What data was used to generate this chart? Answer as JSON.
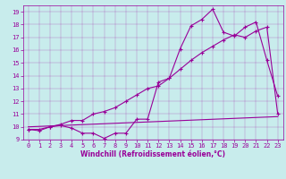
{
  "xlabel": "Windchill (Refroidissement éolien,°C)",
  "background_color": "#c8ecec",
  "line_color": "#990099",
  "xlim": [
    -0.5,
    23.5
  ],
  "ylim": [
    9,
    19.5
  ],
  "xticks": [
    0,
    1,
    2,
    3,
    4,
    5,
    6,
    7,
    8,
    9,
    10,
    11,
    12,
    13,
    14,
    15,
    16,
    17,
    18,
    19,
    20,
    21,
    22,
    23
  ],
  "yticks": [
    9,
    10,
    11,
    12,
    13,
    14,
    15,
    16,
    17,
    18,
    19
  ],
  "line1_x": [
    0,
    1,
    2,
    3,
    4,
    5,
    6,
    7,
    8,
    9,
    10,
    11,
    12,
    13,
    14,
    15,
    16,
    17,
    18,
    19,
    20,
    21,
    22,
    23
  ],
  "line1_y": [
    9.8,
    9.7,
    10.0,
    10.1,
    9.9,
    9.5,
    9.5,
    9.1,
    9.5,
    9.5,
    10.6,
    10.6,
    13.5,
    13.8,
    16.1,
    17.9,
    18.4,
    19.2,
    17.4,
    17.1,
    17.8,
    18.2,
    15.2,
    12.4
  ],
  "line2_x": [
    0,
    1,
    2,
    3,
    4,
    5,
    6,
    7,
    8,
    9,
    10,
    11,
    12,
    13,
    14,
    15,
    16,
    17,
    18,
    19,
    20,
    21,
    22,
    23
  ],
  "line2_y": [
    9.8,
    9.8,
    10.0,
    10.2,
    10.5,
    10.5,
    11.0,
    11.2,
    11.5,
    12.0,
    12.5,
    13.0,
    13.2,
    13.8,
    14.5,
    15.2,
    15.8,
    16.3,
    16.8,
    17.2,
    17.0,
    17.5,
    17.8,
    11.0
  ],
  "line3_x": [
    0,
    23
  ],
  "line3_y": [
    10.0,
    10.8
  ],
  "lw": 0.8,
  "marker_size": 3,
  "xlabel_fontsize": 5.5,
  "tick_fontsize": 5,
  "grid_alpha": 0.5,
  "grid_lw": 0.3
}
